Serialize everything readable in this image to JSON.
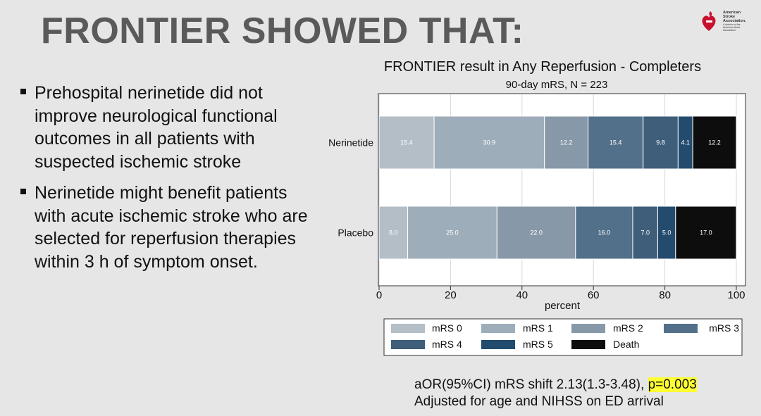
{
  "slide": {
    "title": "FRONTIER SHOWED THAT:",
    "logo_text": [
      "American",
      "Stroke",
      "Association.",
      "A division of the",
      "American Heart Association."
    ],
    "bullets": [
      "Prehospital nerinetide did not improve neurological functional outcomes in all patients with suspected ischemic stroke",
      "Nerinetide might benefit patients with acute ischemic stroke who are selected for reperfusion therapies within 3 h of symptom onset."
    ],
    "footnote": {
      "line1_prefix": "aOR(95%CI) mRS shift 2.13(1.3-3.48), ",
      "line1_highlight": "p=0.003",
      "line2": "Adjusted for age and NIHSS on ED arrival"
    },
    "logo_color": "#c8102e"
  },
  "chart_data": {
    "type": "bar",
    "orientation": "horizontal",
    "stacked": true,
    "title": "FRONTIER result in Any Reperfusion - Completers",
    "subtitle": "90-day mRS, N = 223",
    "xlabel": "percent",
    "ylabel": "",
    "xlim": [
      0,
      100
    ],
    "xticks": [
      0,
      20,
      40,
      60,
      80,
      100
    ],
    "grid": true,
    "legend_position": "bottom",
    "categories": [
      "Nerinetide",
      "Placebo"
    ],
    "series": [
      {
        "name": "mRS 0",
        "color": "#b3bec7",
        "values": [
          15.4,
          8.0
        ]
      },
      {
        "name": "mRS 1",
        "color": "#9eadba",
        "values": [
          30.9,
          25.0
        ]
      },
      {
        "name": "mRS 2",
        "color": "#8798a8",
        "values": [
          12.2,
          22.0
        ]
      },
      {
        "name": "mRS 3",
        "color": "#53708a",
        "values": [
          15.4,
          16.0
        ]
      },
      {
        "name": "mRS 4",
        "color": "#3e5e7a",
        "values": [
          9.8,
          7.0
        ]
      },
      {
        "name": "mRS 5",
        "color": "#234b6e",
        "values": [
          4.1,
          5.0
        ]
      },
      {
        "name": "Death",
        "color": "#0d0d0d",
        "values": [
          12.2,
          17.0
        ]
      }
    ],
    "value_labels": [
      [
        "15.4",
        "30.9",
        "12.2",
        "15.4",
        "9.8",
        "4.1",
        "12.2"
      ],
      [
        "8.0",
        "25.0",
        "22.0",
        "16.0",
        "7.0",
        "5.0",
        "17.0"
      ]
    ]
  }
}
